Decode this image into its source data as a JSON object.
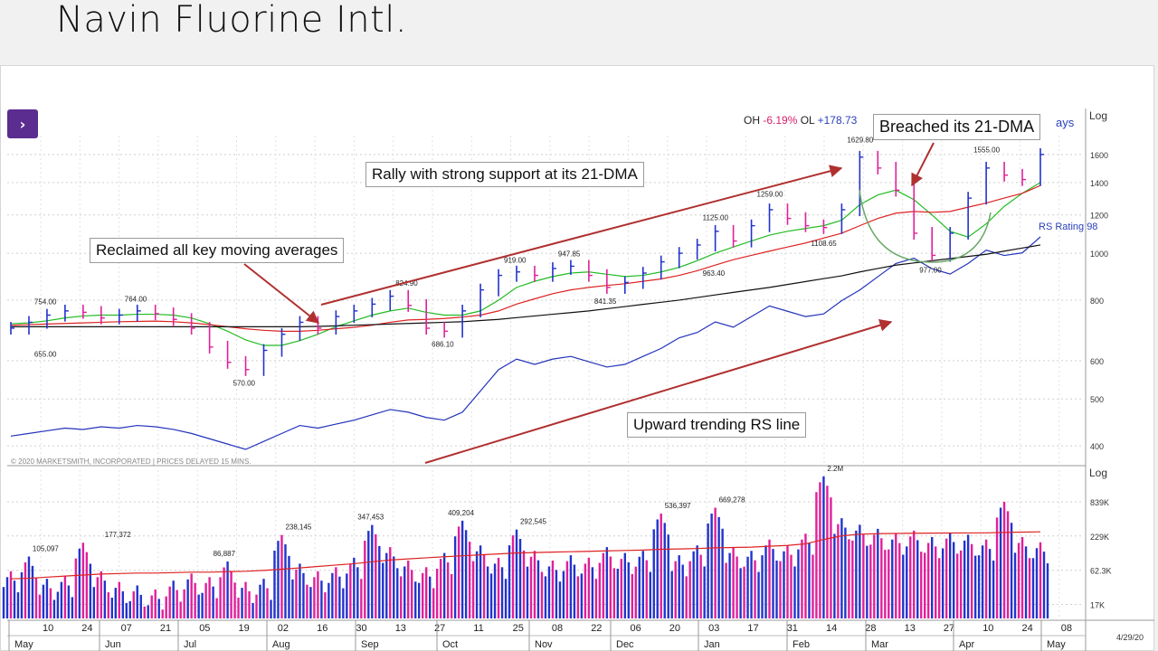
{
  "title": "Navin Fluorine Intl.",
  "header": {
    "oh_label": "OH",
    "oh_value": "-6.19%",
    "ol_label": "OL",
    "ol_value": "+178.73",
    "days_fragment": "ays"
  },
  "copyright": "© 2020 MARKETSMITH, INCORPORATED | PRICES DELAYED 15 MINS.",
  "callouts": {
    "reclaimed": "Reclaimed all key moving averages",
    "rally": "Rally with strong support at its 21-DMA",
    "breached": "Breached its 21-DMA",
    "rs_line": "Upward trending RS line"
  },
  "rs_rating": "RS Rating 98",
  "date_label": "4/29/20",
  "colors": {
    "up": "#2233cc",
    "down": "#e0209a",
    "ma21": "#22bb22",
    "ma50": "#dd2222",
    "ma200": "#111111",
    "rs": "#2233bb",
    "arrow": "#b03030",
    "bg_panel": "#ffffff"
  },
  "chart_data": [
    {
      "type": "line",
      "title": "",
      "yscale": "log",
      "ylabel": "Log",
      "ylim": [
        380,
        1750
      ],
      "price_ticks": [
        "1600",
        "1400",
        "1200",
        "1000",
        "800",
        "600",
        "500",
        "400"
      ],
      "price_labels": [
        {
          "text": "754.00",
          "value": 754,
          "week": 2
        },
        {
          "text": "655.00",
          "value": 655,
          "week": 2
        },
        {
          "text": "764.00",
          "value": 764,
          "week": 7
        },
        {
          "text": "570.00",
          "value": 570,
          "week": 13
        },
        {
          "text": "824.90",
          "value": 824.9,
          "week": 22
        },
        {
          "text": "686.10",
          "value": 686.1,
          "week": 24
        },
        {
          "text": "919.00",
          "value": 919,
          "week": 28
        },
        {
          "text": "947.85",
          "value": 947.85,
          "week": 31
        },
        {
          "text": "841.35",
          "value": 841.35,
          "week": 33
        },
        {
          "text": "1125.00",
          "value": 1125,
          "week": 39
        },
        {
          "text": "963.40",
          "value": 963.4,
          "week": 39
        },
        {
          "text": "1259.00",
          "value": 1259,
          "week": 42
        },
        {
          "text": "1108.65",
          "value": 1108.65,
          "week": 45
        },
        {
          "text": "1629.80",
          "value": 1629.8,
          "week": 47
        },
        {
          "text": "977.00",
          "value": 977,
          "week": 51
        },
        {
          "text": "1555.00",
          "value": 1555,
          "week": 54
        }
      ],
      "series": [
        {
          "name": "Price",
          "values": [
            700,
            720,
            745,
            760,
            755,
            735,
            745,
            760,
            750,
            730,
            700,
            640,
            595,
            575,
            630,
            680,
            720,
            700,
            740,
            760,
            785,
            815,
            780,
            700,
            690,
            760,
            840,
            900,
            915,
            900,
            930,
            940,
            900,
            850,
            870,
            910,
            960,
            1000,
            1040,
            1110,
            1060,
            1140,
            1230,
            1180,
            1140,
            1130,
            1230,
            1580,
            1500,
            1350,
            1100,
            990,
            1100,
            1300,
            1500,
            1450,
            1420,
            1600
          ]
        },
        {
          "name": "21-DMA",
          "values": [
            715,
            718,
            725,
            735,
            742,
            745,
            745,
            748,
            748,
            745,
            735,
            715,
            690,
            662,
            645,
            645,
            660,
            680,
            705,
            725,
            745,
            760,
            770,
            755,
            745,
            745,
            760,
            800,
            850,
            875,
            895,
            910,
            915,
            905,
            895,
            900,
            915,
            935,
            965,
            1000,
            1030,
            1060,
            1090,
            1110,
            1125,
            1140,
            1170,
            1260,
            1320,
            1350,
            1290,
            1200,
            1110,
            1080,
            1150,
            1250,
            1330,
            1400
          ]
        },
        {
          "name": "50-DMA",
          "values": [
            710,
            712,
            714,
            716,
            718,
            720,
            722,
            723,
            724,
            722,
            718,
            712,
            705,
            698,
            693,
            690,
            690,
            693,
            698,
            703,
            710,
            720,
            728,
            730,
            733,
            738,
            745,
            760,
            785,
            805,
            825,
            840,
            850,
            858,
            865,
            875,
            885,
            900,
            920,
            945,
            970,
            990,
            1010,
            1030,
            1050,
            1075,
            1100,
            1140,
            1180,
            1210,
            1220,
            1215,
            1220,
            1245,
            1270,
            1300,
            1330,
            1380
          ]
        },
        {
          "name": "200-DMA",
          "values": [
            705,
            705,
            705,
            705,
            705,
            705,
            705,
            705,
            705,
            705,
            705,
            705,
            705,
            705,
            705,
            705,
            705,
            706,
            708,
            710,
            712,
            714,
            716,
            718,
            720,
            722,
            726,
            730,
            736,
            742,
            748,
            754,
            760,
            768,
            776,
            784,
            792,
            800,
            810,
            820,
            830,
            840,
            850,
            862,
            874,
            886,
            898,
            915,
            930,
            945,
            955,
            965,
            975,
            985,
            995,
            1010,
            1025,
            1040
          ]
        }
      ]
    },
    {
      "type": "line",
      "title": "",
      "series": [
        {
          "name": "RS line",
          "values": [
            350,
            360,
            370,
            380,
            375,
            385,
            380,
            390,
            385,
            375,
            360,
            340,
            320,
            300,
            330,
            360,
            390,
            380,
            395,
            410,
            430,
            450,
            440,
            420,
            410,
            440,
            520,
            600,
            640,
            620,
            640,
            650,
            630,
            610,
            620,
            650,
            680,
            720,
            740,
            780,
            760,
            800,
            840,
            820,
            800,
            810,
            860,
            900,
            950,
            1000,
            1020,
            980,
            960,
            1000,
            1050,
            1030,
            1040,
            1100
          ]
        }
      ]
    },
    {
      "type": "bar",
      "title": "",
      "ylabel": "Log",
      "yscale": "log",
      "ylim": [
        10000,
        2600000
      ],
      "volume_ticks": [
        "839K",
        "229K",
        "62.3K",
        "17K"
      ],
      "volume_labels": [
        {
          "text": "105,097",
          "value": 105097,
          "week": 2
        },
        {
          "text": "177,372",
          "value": 177372,
          "week": 6
        },
        {
          "text": "86,887",
          "value": 86887,
          "week": 12
        },
        {
          "text": "238,145",
          "value": 238145,
          "week": 16
        },
        {
          "text": "347,453",
          "value": 347453,
          "week": 20
        },
        {
          "text": "409,204",
          "value": 409204,
          "week": 25
        },
        {
          "text": "292,545",
          "value": 292545,
          "week": 29
        },
        {
          "text": "536,397",
          "value": 536397,
          "week": 37
        },
        {
          "text": "669,278",
          "value": 669278,
          "week": 40
        },
        {
          "text": "2.2M",
          "value": 2200000,
          "week": 46
        }
      ],
      "series": [
        {
          "name": "Volume",
          "values": [
            60000,
            105097,
            45000,
            50000,
            177372,
            60000,
            40000,
            35000,
            30000,
            42000,
            55000,
            48000,
            86887,
            40000,
            45000,
            238145,
            80000,
            60000,
            70000,
            100000,
            347453,
            150000,
            90000,
            70000,
            120000,
            409204,
            160000,
            100000,
            292545,
            130000,
            90000,
            110000,
            100000,
            150000,
            120000,
            130000,
            536397,
            110000,
            160000,
            669278,
            150000,
            130000,
            200000,
            160000,
            250000,
            2200000,
            450000,
            350000,
            300000,
            250000,
            280000,
            220000,
            260000,
            240000,
            200000,
            839000,
            220000,
            180000
          ]
        },
        {
          "name": "50-day avg volume",
          "values": [
            45000,
            46000,
            48000,
            50000,
            52000,
            54000,
            55000,
            56000,
            56000,
            57000,
            58000,
            58000,
            59000,
            60000,
            62000,
            65000,
            68000,
            72000,
            76000,
            80000,
            86000,
            92000,
            96000,
            100000,
            104000,
            108000,
            112000,
            116000,
            120000,
            122000,
            124000,
            126000,
            128000,
            130000,
            132000,
            134000,
            138000,
            140000,
            142000,
            146000,
            148000,
            150000,
            155000,
            160000,
            170000,
            200000,
            230000,
            245000,
            250000,
            252000,
            254000,
            255000,
            256000,
            257000,
            258000,
            262000,
            265000,
            268000
          ]
        }
      ]
    }
  ],
  "x_axis": {
    "day_labels": [
      "10",
      "24",
      "07",
      "21",
      "05",
      "19",
      "02",
      "16",
      "30",
      "13",
      "27",
      "11",
      "25",
      "08",
      "22",
      "06",
      "20",
      "03",
      "17",
      "31",
      "14",
      "28",
      "13",
      "27",
      "10",
      "24",
      "08"
    ],
    "month_labels": [
      "May",
      "Jun",
      "Jul",
      "Aug",
      "Sep",
      "Oct",
      "Nov",
      "Dec",
      "Jan",
      "Feb",
      "Mar",
      "Apr",
      "May"
    ]
  }
}
